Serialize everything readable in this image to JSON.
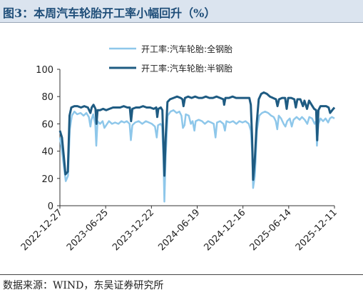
{
  "figure": {
    "title": "图3：本周汽车轮胎开工率小幅回升（%）",
    "source": "数据来源：WIND，东吴证券研究所"
  },
  "colors": {
    "full_steel": "#8ec7ea",
    "semi_steel": "#1e5b82",
    "title_band": "#dbe4ef",
    "title_text": "#1f4e79"
  },
  "chart_data": {
    "type": "line",
    "title": "",
    "xlabel": "",
    "ylabel": "",
    "ylim": [
      0,
      100
    ],
    "yticks": [
      0,
      20,
      40,
      60,
      80,
      100
    ],
    "xlim": [
      "2022-12-27",
      "2025-12-11"
    ],
    "xtick_labels": [
      "2022-12-27",
      "2023-06-25",
      "2023-12-22",
      "2024-06-19",
      "2024-12-16",
      "2025-06-14",
      "2025-12-11"
    ],
    "grid": false,
    "legend_position": "top",
    "series": [
      {
        "name": "开工率:汽车轮胎:全钢胎",
        "color": "#8ec7ea",
        "points": [
          [
            "2022-12-27",
            50
          ],
          [
            "2023-01-04",
            40
          ],
          [
            "2023-01-12",
            28
          ],
          [
            "2023-01-19",
            18
          ],
          [
            "2023-01-28",
            22
          ],
          [
            "2023-02-04",
            56
          ],
          [
            "2023-02-12",
            66
          ],
          [
            "2023-02-22",
            69
          ],
          [
            "2023-03-05",
            67
          ],
          [
            "2023-03-18",
            68
          ],
          [
            "2023-03-30",
            66
          ],
          [
            "2023-04-10",
            68
          ],
          [
            "2023-04-20",
            65
          ],
          [
            "2023-04-26",
            58
          ],
          [
            "2023-04-30",
            63
          ],
          [
            "2023-05-07",
            67
          ],
          [
            "2023-05-15",
            60
          ],
          [
            "2023-05-19",
            44
          ],
          [
            "2023-05-24",
            62
          ],
          [
            "2023-06-03",
            60
          ],
          [
            "2023-06-13",
            62
          ],
          [
            "2023-06-20",
            57
          ],
          [
            "2023-06-27",
            59
          ],
          [
            "2023-07-08",
            62
          ],
          [
            "2023-07-20",
            60
          ],
          [
            "2023-08-01",
            61
          ],
          [
            "2023-08-14",
            60
          ],
          [
            "2023-08-26",
            62
          ],
          [
            "2023-09-06",
            61
          ],
          [
            "2023-09-16",
            62
          ],
          [
            "2023-09-27",
            60
          ],
          [
            "2023-10-02",
            48
          ],
          [
            "2023-10-08",
            59
          ],
          [
            "2023-10-19",
            61
          ],
          [
            "2023-11-02",
            62
          ],
          [
            "2023-11-16",
            60
          ],
          [
            "2023-11-30",
            62
          ],
          [
            "2023-12-12",
            61
          ],
          [
            "2023-12-24",
            60
          ],
          [
            "2024-01-05",
            58
          ],
          [
            "2024-01-12",
            50
          ],
          [
            "2024-01-17",
            59
          ],
          [
            "2024-01-27",
            60
          ],
          [
            "2024-02-02",
            58
          ],
          [
            "2024-02-07",
            36
          ],
          [
            "2024-02-11",
            3
          ],
          [
            "2024-02-16",
            36
          ],
          [
            "2024-02-24",
            66
          ],
          [
            "2024-03-06",
            69
          ],
          [
            "2024-03-18",
            70
          ],
          [
            "2024-03-30",
            68
          ],
          [
            "2024-04-10",
            69
          ],
          [
            "2024-04-18",
            66
          ],
          [
            "2024-04-24",
            57
          ],
          [
            "2024-04-30",
            59
          ],
          [
            "2024-05-05",
            67
          ],
          [
            "2024-05-17",
            66
          ],
          [
            "2024-05-25",
            60
          ],
          [
            "2024-06-01",
            62
          ],
          [
            "2024-06-08",
            55
          ],
          [
            "2024-06-13",
            62
          ],
          [
            "2024-06-25",
            63
          ],
          [
            "2024-07-08",
            62
          ],
          [
            "2024-07-19",
            60
          ],
          [
            "2024-08-01",
            62
          ],
          [
            "2024-08-13",
            61
          ],
          [
            "2024-08-23",
            60
          ],
          [
            "2024-08-30",
            50
          ],
          [
            "2024-09-05",
            61
          ],
          [
            "2024-09-17",
            62
          ],
          [
            "2024-09-30",
            60
          ],
          [
            "2024-10-06",
            55
          ],
          [
            "2024-10-12",
            62
          ],
          [
            "2024-10-25",
            61
          ],
          [
            "2024-11-07",
            62
          ],
          [
            "2024-11-20",
            60
          ],
          [
            "2024-12-02",
            62
          ],
          [
            "2024-12-14",
            61
          ],
          [
            "2024-12-26",
            62
          ],
          [
            "2025-01-08",
            60
          ],
          [
            "2025-01-16",
            55
          ],
          [
            "2025-01-21",
            40
          ],
          [
            "2025-01-25",
            13
          ],
          [
            "2025-02-01",
            22
          ],
          [
            "2025-02-09",
            55
          ],
          [
            "2025-02-18",
            66
          ],
          [
            "2025-03-01",
            68
          ],
          [
            "2025-03-13",
            69
          ],
          [
            "2025-03-25",
            68
          ],
          [
            "2025-04-06",
            66
          ],
          [
            "2025-04-16",
            65
          ],
          [
            "2025-04-24",
            62
          ],
          [
            "2025-04-30",
            56
          ],
          [
            "2025-05-06",
            66
          ],
          [
            "2025-05-15",
            64
          ],
          [
            "2025-05-25",
            60
          ],
          [
            "2025-06-01",
            58
          ],
          [
            "2025-06-08",
            62
          ],
          [
            "2025-06-18",
            64
          ],
          [
            "2025-06-26",
            58
          ],
          [
            "2025-07-03",
            63
          ],
          [
            "2025-07-15",
            65
          ],
          [
            "2025-07-27",
            63
          ],
          [
            "2025-08-05",
            65
          ],
          [
            "2025-08-16",
            63
          ],
          [
            "2025-08-26",
            60
          ],
          [
            "2025-09-03",
            65
          ],
          [
            "2025-09-14",
            64
          ],
          [
            "2025-09-24",
            60
          ],
          [
            "2025-09-30",
            62
          ],
          [
            "2025-10-03",
            44
          ],
          [
            "2025-10-09",
            60
          ],
          [
            "2025-10-17",
            64
          ],
          [
            "2025-10-27",
            62
          ],
          [
            "2025-11-06",
            64
          ],
          [
            "2025-11-16",
            61
          ],
          [
            "2025-11-23",
            64
          ],
          [
            "2025-12-01",
            65
          ],
          [
            "2025-12-11",
            64
          ]
        ]
      },
      {
        "name": "开工率:汽车轮胎:半钢胎",
        "color": "#1e5b82",
        "points": [
          [
            "2022-12-27",
            55
          ],
          [
            "2023-01-04",
            50
          ],
          [
            "2023-01-12",
            35
          ],
          [
            "2023-01-18",
            23
          ],
          [
            "2023-01-27",
            25
          ],
          [
            "2023-02-03",
            66
          ],
          [
            "2023-02-10",
            72
          ],
          [
            "2023-02-22",
            73
          ],
          [
            "2023-03-06",
            73
          ],
          [
            "2023-03-20",
            72
          ],
          [
            "2023-04-02",
            73
          ],
          [
            "2023-04-16",
            72
          ],
          [
            "2023-04-26",
            68
          ],
          [
            "2023-05-01",
            72
          ],
          [
            "2023-05-08",
            74
          ],
          [
            "2023-05-16",
            71
          ],
          [
            "2023-05-20",
            60
          ],
          [
            "2023-05-24",
            70
          ],
          [
            "2023-06-03",
            70
          ],
          [
            "2023-06-15",
            71
          ],
          [
            "2023-06-27",
            70
          ],
          [
            "2023-07-10",
            71
          ],
          [
            "2023-07-24",
            72
          ],
          [
            "2023-08-07",
            72
          ],
          [
            "2023-08-21",
            72
          ],
          [
            "2023-09-04",
            73
          ],
          [
            "2023-09-18",
            72
          ],
          [
            "2023-09-28",
            72
          ],
          [
            "2023-10-03",
            62
          ],
          [
            "2023-10-08",
            71
          ],
          [
            "2023-10-22",
            72
          ],
          [
            "2023-11-05",
            72
          ],
          [
            "2023-11-19",
            73
          ],
          [
            "2023-12-03",
            72
          ],
          [
            "2023-12-17",
            72
          ],
          [
            "2023-12-31",
            71
          ],
          [
            "2024-01-10",
            72
          ],
          [
            "2024-01-14",
            65
          ],
          [
            "2024-01-18",
            71
          ],
          [
            "2024-01-28",
            72
          ],
          [
            "2024-02-03",
            70
          ],
          [
            "2024-02-07",
            46
          ],
          [
            "2024-02-11",
            22
          ],
          [
            "2024-02-16",
            50
          ],
          [
            "2024-02-23",
            76
          ],
          [
            "2024-03-04",
            78
          ],
          [
            "2024-03-18",
            79
          ],
          [
            "2024-04-01",
            80
          ],
          [
            "2024-04-15",
            79
          ],
          [
            "2024-04-22",
            78
          ],
          [
            "2024-04-26",
            73
          ],
          [
            "2024-05-02",
            79
          ],
          [
            "2024-05-14",
            80
          ],
          [
            "2024-05-28",
            79
          ],
          [
            "2024-06-11",
            80
          ],
          [
            "2024-06-25",
            79
          ],
          [
            "2024-07-09",
            79
          ],
          [
            "2024-07-23",
            80
          ],
          [
            "2024-08-06",
            79
          ],
          [
            "2024-08-20",
            79
          ],
          [
            "2024-09-03",
            80
          ],
          [
            "2024-09-17",
            79
          ],
          [
            "2024-09-30",
            78
          ],
          [
            "2024-10-03",
            74
          ],
          [
            "2024-10-08",
            79
          ],
          [
            "2024-10-22",
            79
          ],
          [
            "2024-11-05",
            80
          ],
          [
            "2024-11-19",
            79
          ],
          [
            "2024-12-03",
            79
          ],
          [
            "2024-12-17",
            79
          ],
          [
            "2024-12-31",
            79
          ],
          [
            "2025-01-10",
            79
          ],
          [
            "2025-01-16",
            74
          ],
          [
            "2025-01-21",
            50
          ],
          [
            "2025-01-25",
            19
          ],
          [
            "2025-01-31",
            32
          ],
          [
            "2025-02-08",
            60
          ],
          [
            "2025-02-16",
            78
          ],
          [
            "2025-02-26",
            82
          ],
          [
            "2025-03-08",
            83
          ],
          [
            "2025-03-20",
            82
          ],
          [
            "2025-04-01",
            80
          ],
          [
            "2025-04-13",
            79
          ],
          [
            "2025-04-25",
            78
          ],
          [
            "2025-05-01",
            73
          ],
          [
            "2025-05-07",
            78
          ],
          [
            "2025-05-19",
            79
          ],
          [
            "2025-05-31",
            79
          ],
          [
            "2025-06-06",
            71
          ],
          [
            "2025-06-12",
            79
          ],
          [
            "2025-06-24",
            79
          ],
          [
            "2025-07-06",
            78
          ],
          [
            "2025-07-12",
            72
          ],
          [
            "2025-07-18",
            78
          ],
          [
            "2025-07-30",
            78
          ],
          [
            "2025-08-09",
            73
          ],
          [
            "2025-08-15",
            77
          ],
          [
            "2025-08-25",
            71
          ],
          [
            "2025-09-02",
            77
          ],
          [
            "2025-09-12",
            74
          ],
          [
            "2025-09-22",
            71
          ],
          [
            "2025-09-30",
            70
          ],
          [
            "2025-10-04",
            48
          ],
          [
            "2025-10-09",
            70
          ],
          [
            "2025-10-17",
            73
          ],
          [
            "2025-10-29",
            73
          ],
          [
            "2025-11-08",
            73
          ],
          [
            "2025-11-18",
            72
          ],
          [
            "2025-11-24",
            68
          ],
          [
            "2025-12-02",
            70
          ],
          [
            "2025-12-11",
            72
          ]
        ]
      }
    ]
  }
}
